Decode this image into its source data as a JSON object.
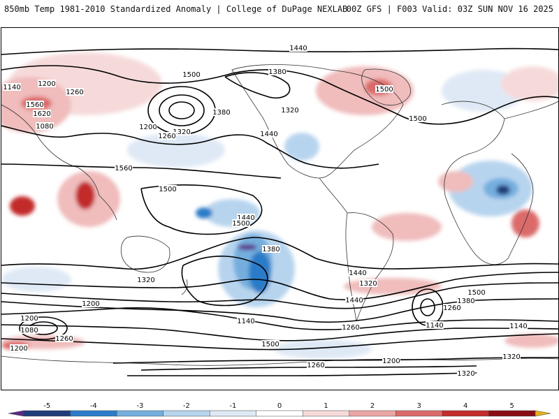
{
  "header": {
    "left_title": "850mb Temp 1981-2010 Standardized Anomaly | College of DuPage NEXLAB",
    "right_title": "00Z GFS | F003 Valid: 03Z SUN NOV 16 2025"
  },
  "contour_labels": [
    "1440",
    "1500",
    "1260",
    "1140",
    "1200",
    "1380",
    "1560",
    "1620",
    "1320",
    "1080",
    "1380",
    "1320",
    "1500",
    "1440",
    "1500",
    "1200",
    "1260",
    "1560",
    "1500",
    "1440",
    "1380",
    "1500",
    "1320",
    "1200",
    "1140",
    "1080",
    "1260",
    "1440",
    "1500",
    "1380",
    "1260",
    "1140",
    "1500",
    "1440",
    "1320",
    "1200",
    "1140",
    "1200",
    "1260",
    "1320",
    "1200",
    "1260",
    "1320"
  ],
  "colorbar": {
    "ticks": [
      "-5",
      "-4",
      "-3",
      "-2",
      "-1",
      "0",
      "1",
      "2",
      "3",
      "4",
      "5"
    ],
    "colors": [
      "#5b2a86",
      "#1f3d7a",
      "#2b7bc8",
      "#74aede",
      "#b7d4ee",
      "#dfe9f5",
      "#ffffff",
      "#f6dada",
      "#eba5a5",
      "#db6a6a",
      "#c32b2b",
      "#8a0e14",
      "#e5b21c"
    ]
  }
}
